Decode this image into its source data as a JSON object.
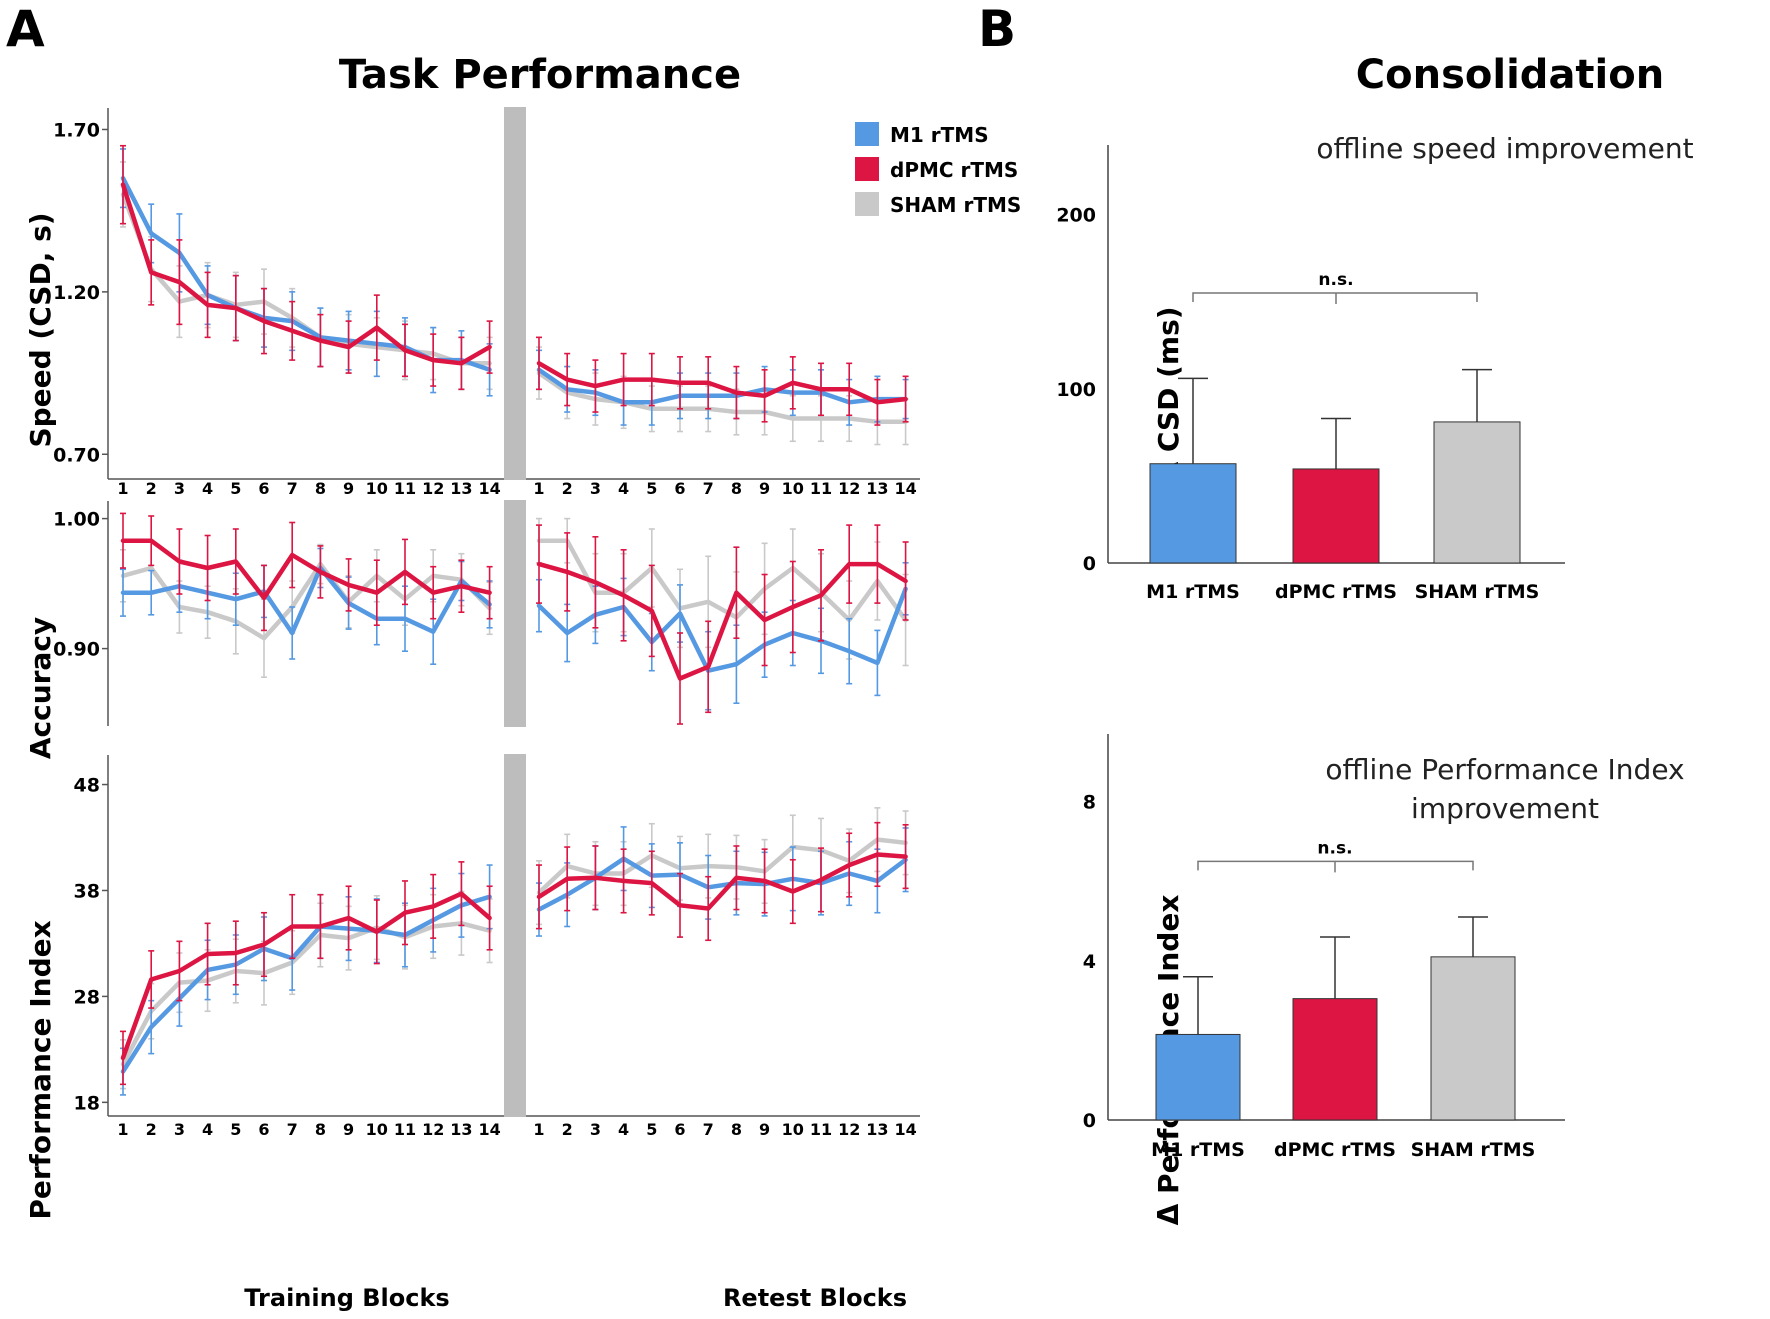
{
  "colors": {
    "m1": "#5599E2",
    "dpmc": "#DC1543",
    "sham": "#C9C9C9",
    "break": "#BDBDBD",
    "axis": "#444444"
  },
  "panelA": {
    "letter": "A",
    "title": "Task Performance"
  },
  "panelB": {
    "letter": "B",
    "title": "Consolidation"
  },
  "legend": [
    {
      "key": "m1",
      "label": "M1 rTMS"
    },
    {
      "key": "dpmc",
      "label": "dPMC rTMS"
    },
    {
      "key": "sham",
      "label": "SHAM rTMS"
    }
  ],
  "xcaptions": {
    "training": "Training Blocks",
    "retest": "Retest Blocks"
  },
  "chart_data": [
    {
      "id": "speed",
      "type": "line",
      "ylabel": "Speed (CSD, s)",
      "ylim": [
        0.63,
        1.76
      ],
      "yticks": [
        0.7,
        1.2,
        1.7
      ],
      "ytick_labels": [
        "0.70",
        "1.20",
        "1.70"
      ],
      "training_blocks": [
        1,
        2,
        3,
        4,
        5,
        6,
        7,
        8,
        9,
        10,
        11,
        12,
        13,
        14
      ],
      "retest_blocks": [
        1,
        2,
        3,
        4,
        5,
        6,
        7,
        8,
        9,
        10,
        11,
        12,
        13,
        14
      ],
      "series": [
        {
          "name": "M1 rTMS",
          "key": "m1",
          "training": [
            1.55,
            1.38,
            1.32,
            1.19,
            1.15,
            1.12,
            1.11,
            1.06,
            1.05,
            1.04,
            1.03,
            0.99,
            0.99,
            0.96
          ],
          "training_err": [
            0.09,
            0.09,
            0.12,
            0.09,
            0.1,
            0.09,
            0.09,
            0.09,
            0.09,
            0.1,
            0.09,
            0.1,
            0.09,
            0.08
          ],
          "retest": [
            0.96,
            0.9,
            0.89,
            0.86,
            0.86,
            0.88,
            0.88,
            0.88,
            0.9,
            0.89,
            0.89,
            0.86,
            0.87,
            0.87
          ],
          "retest_err": [
            0.06,
            0.07,
            0.07,
            0.07,
            0.07,
            0.07,
            0.07,
            0.07,
            0.07,
            0.07,
            0.07,
            0.07,
            0.07,
            0.06
          ]
        },
        {
          "name": "dPMC rTMS",
          "key": "dpmc",
          "training": [
            1.53,
            1.26,
            1.23,
            1.16,
            1.15,
            1.11,
            1.08,
            1.05,
            1.03,
            1.09,
            1.02,
            0.99,
            0.98,
            1.03
          ],
          "training_err": [
            0.12,
            0.1,
            0.13,
            0.1,
            0.1,
            0.1,
            0.09,
            0.08,
            0.08,
            0.1,
            0.08,
            0.08,
            0.08,
            0.08
          ],
          "retest": [
            0.98,
            0.93,
            0.91,
            0.93,
            0.93,
            0.92,
            0.92,
            0.89,
            0.88,
            0.92,
            0.9,
            0.9,
            0.86,
            0.87
          ],
          "retest_err": [
            0.08,
            0.08,
            0.08,
            0.08,
            0.08,
            0.08,
            0.08,
            0.08,
            0.08,
            0.08,
            0.08,
            0.08,
            0.07,
            0.07
          ]
        },
        {
          "name": "SHAM rTMS",
          "key": "sham",
          "training": [
            1.5,
            1.27,
            1.17,
            1.19,
            1.16,
            1.17,
            1.12,
            1.06,
            1.04,
            1.03,
            1.02,
            1.01,
            0.98,
            0.98
          ],
          "training_err": [
            0.1,
            0.1,
            0.11,
            0.1,
            0.1,
            0.1,
            0.09,
            0.09,
            0.09,
            0.09,
            0.09,
            0.08,
            0.08,
            0.08
          ],
          "retest": [
            0.95,
            0.89,
            0.87,
            0.86,
            0.84,
            0.84,
            0.84,
            0.83,
            0.83,
            0.81,
            0.81,
            0.81,
            0.8,
            0.8
          ],
          "retest_err": [
            0.08,
            0.08,
            0.08,
            0.08,
            0.07,
            0.07,
            0.07,
            0.07,
            0.07,
            0.07,
            0.07,
            0.07,
            0.07,
            0.07
          ]
        }
      ]
    },
    {
      "id": "accuracy",
      "type": "line",
      "ylabel": "Accuracy",
      "ylim": [
        0.842,
        1.012
      ],
      "yticks": [
        0.9,
        1.0
      ],
      "ytick_labels": [
        "0.90",
        "1.00"
      ],
      "training_blocks": [
        1,
        2,
        3,
        4,
        5,
        6,
        7,
        8,
        9,
        10,
        11,
        12,
        13,
        14
      ],
      "retest_blocks": [
        1,
        2,
        3,
        4,
        5,
        6,
        7,
        8,
        9,
        10,
        11,
        12,
        13,
        14
      ],
      "series": [
        {
          "name": "M1 rTMS",
          "key": "m1",
          "training": [
            0.943,
            0.943,
            0.948,
            0.943,
            0.938,
            0.944,
            0.912,
            0.962,
            0.935,
            0.923,
            0.923,
            0.913,
            0.952,
            0.934
          ],
          "training_err": [
            0.018,
            0.017,
            0.02,
            0.02,
            0.02,
            0.02,
            0.02,
            0.015,
            0.02,
            0.02,
            0.025,
            0.025,
            0.015,
            0.018
          ],
          "retest": [
            0.933,
            0.912,
            0.926,
            0.932,
            0.905,
            0.927,
            0.883,
            0.888,
            0.903,
            0.912,
            0.906,
            0.898,
            0.889,
            0.946
          ],
          "retest_err": [
            0.02,
            0.022,
            0.022,
            0.022,
            0.022,
            0.022,
            0.03,
            0.03,
            0.025,
            0.025,
            0.025,
            0.025,
            0.025,
            0.02
          ]
        },
        {
          "name": "dPMC rTMS",
          "key": "dpmc",
          "training": [
            0.983,
            0.983,
            0.967,
            0.962,
            0.967,
            0.939,
            0.972,
            0.959,
            0.949,
            0.943,
            0.959,
            0.943,
            0.948,
            0.943
          ],
          "training_err": [
            0.021,
            0.019,
            0.025,
            0.025,
            0.025,
            0.025,
            0.025,
            0.02,
            0.02,
            0.025,
            0.025,
            0.02,
            0.02,
            0.02
          ],
          "retest": [
            0.965,
            0.959,
            0.951,
            0.941,
            0.929,
            0.877,
            0.886,
            0.943,
            0.922,
            0.932,
            0.941,
            0.965,
            0.965,
            0.952
          ],
          "retest_err": [
            0.03,
            0.03,
            0.035,
            0.035,
            0.035,
            0.035,
            0.035,
            0.035,
            0.035,
            0.035,
            0.035,
            0.03,
            0.03,
            0.03
          ]
        },
        {
          "name": "SHAM rTMS",
          "key": "sham",
          "training": [
            0.956,
            0.962,
            0.932,
            0.928,
            0.921,
            0.908,
            0.932,
            0.965,
            0.936,
            0.956,
            0.938,
            0.956,
            0.953,
            0.931
          ],
          "training_err": [
            0.02,
            0.02,
            0.02,
            0.02,
            0.025,
            0.03,
            0.02,
            0.015,
            0.02,
            0.02,
            0.02,
            0.02,
            0.02,
            0.02
          ],
          "retest": [
            0.983,
            0.983,
            0.943,
            0.943,
            0.962,
            0.931,
            0.936,
            0.924,
            0.946,
            0.962,
            0.943,
            0.922,
            0.952,
            0.922
          ],
          "retest_err": [
            0.017,
            0.017,
            0.03,
            0.03,
            0.03,
            0.03,
            0.035,
            0.035,
            0.035,
            0.03,
            0.03,
            0.03,
            0.03,
            0.035
          ]
        }
      ]
    },
    {
      "id": "performance_index",
      "type": "line",
      "ylabel": "Performance Index",
      "ylim": [
        16.9,
        50.6
      ],
      "yticks": [
        18,
        28,
        38,
        48
      ],
      "ytick_labels": [
        "18",
        "28",
        "38",
        "48"
      ],
      "training_blocks": [
        1,
        2,
        3,
        4,
        5,
        6,
        7,
        8,
        9,
        10,
        11,
        12,
        13,
        14
      ],
      "retest_blocks": [
        1,
        2,
        3,
        4,
        5,
        6,
        7,
        8,
        9,
        10,
        11,
        12,
        13,
        14
      ],
      "series": [
        {
          "name": "M1 rTMS",
          "key": "m1",
          "training": [
            20.9,
            25.1,
            27.8,
            30.5,
            31,
            32.5,
            31.6,
            34.6,
            34.4,
            34.2,
            33.8,
            35.2,
            36.6,
            37.4
          ],
          "training_err": [
            2.2,
            2.5,
            2.6,
            2.8,
            2.8,
            3,
            3,
            3,
            3,
            3,
            3,
            3,
            3,
            3
          ],
          "retest": [
            36.2,
            37.6,
            39.2,
            41,
            39.4,
            39.5,
            38.3,
            38.7,
            38.6,
            39.1,
            38.7,
            39.6,
            38.9,
            40.9
          ],
          "retest_err": [
            2.5,
            3,
            3,
            3,
            3,
            3,
            3,
            3,
            3,
            3,
            3,
            3,
            3,
            3
          ]
        },
        {
          "name": "dPMC rTMS",
          "key": "dpmc",
          "training": [
            22.2,
            29.6,
            30.4,
            32,
            32.1,
            32.9,
            34.6,
            34.6,
            35.4,
            34.1,
            35.9,
            36.5,
            37.7,
            35.4
          ],
          "training_err": [
            2.5,
            2.7,
            2.8,
            2.9,
            3,
            3,
            3,
            3,
            3,
            3,
            3,
            3,
            3,
            3
          ],
          "retest": [
            37.4,
            39.1,
            39.2,
            38.9,
            38.7,
            36.6,
            36.3,
            39.2,
            38.9,
            37.9,
            39,
            40.4,
            41.4,
            41.2
          ],
          "retest_err": [
            3,
            3,
            3,
            3,
            3,
            3,
            3,
            3,
            3,
            3,
            3,
            3,
            3,
            3
          ]
        },
        {
          "name": "SHAM rTMS",
          "key": "sham",
          "training": [
            21.6,
            26.6,
            29.3,
            29.5,
            30.4,
            30.2,
            31.2,
            33.8,
            33.5,
            34.5,
            33.6,
            34.6,
            34.9,
            34.2
          ],
          "training_err": [
            2.3,
            2.6,
            2.8,
            2.9,
            3,
            3,
            3,
            3,
            3,
            3,
            3,
            3,
            3,
            3
          ],
          "retest": [
            37.8,
            40.3,
            39.6,
            39.6,
            41.3,
            40.1,
            40.3,
            40.2,
            39.8,
            42.1,
            41.8,
            40.8,
            42.8,
            42.5
          ],
          "retest_err": [
            3,
            3,
            3,
            3,
            3,
            3,
            3,
            3,
            3,
            3,
            3,
            3,
            3,
            3
          ]
        }
      ]
    },
    {
      "id": "offline_speed",
      "type": "bar",
      "title": "offline speed improvement",
      "ylabel": "Δ CSD (ms)",
      "ylim": [
        0,
        240
      ],
      "yticks": [
        0,
        100,
        200
      ],
      "ytick_labels": [
        "0",
        "100",
        "200"
      ],
      "categories": [
        "M1 rTMS",
        "dPMC rTMS",
        "SHAM rTMS"
      ],
      "keys": [
        "m1",
        "dpmc",
        "sham"
      ],
      "values": [
        57,
        54,
        81
      ],
      "errors": [
        49,
        29,
        30
      ],
      "annotation": "n.s.",
      "bracket_y": 155
    },
    {
      "id": "offline_pi",
      "type": "bar",
      "title_lines": [
        "offline Performance Index",
        "improvement"
      ],
      "ylabel": "Δ Performance Index",
      "ylim": [
        0,
        9.7
      ],
      "yticks": [
        0,
        4,
        8
      ],
      "ytick_labels": [
        "0",
        "4",
        "8"
      ],
      "categories": [
        "M1 rTMS",
        "dPMC rTMS",
        "SHAM rTMS"
      ],
      "keys": [
        "m1",
        "dpmc",
        "sham"
      ],
      "values": [
        2.15,
        3.05,
        4.1
      ],
      "errors": [
        1.45,
        1.55,
        1.0
      ],
      "annotation": "n.s.",
      "bracket_y": 6.5
    }
  ]
}
